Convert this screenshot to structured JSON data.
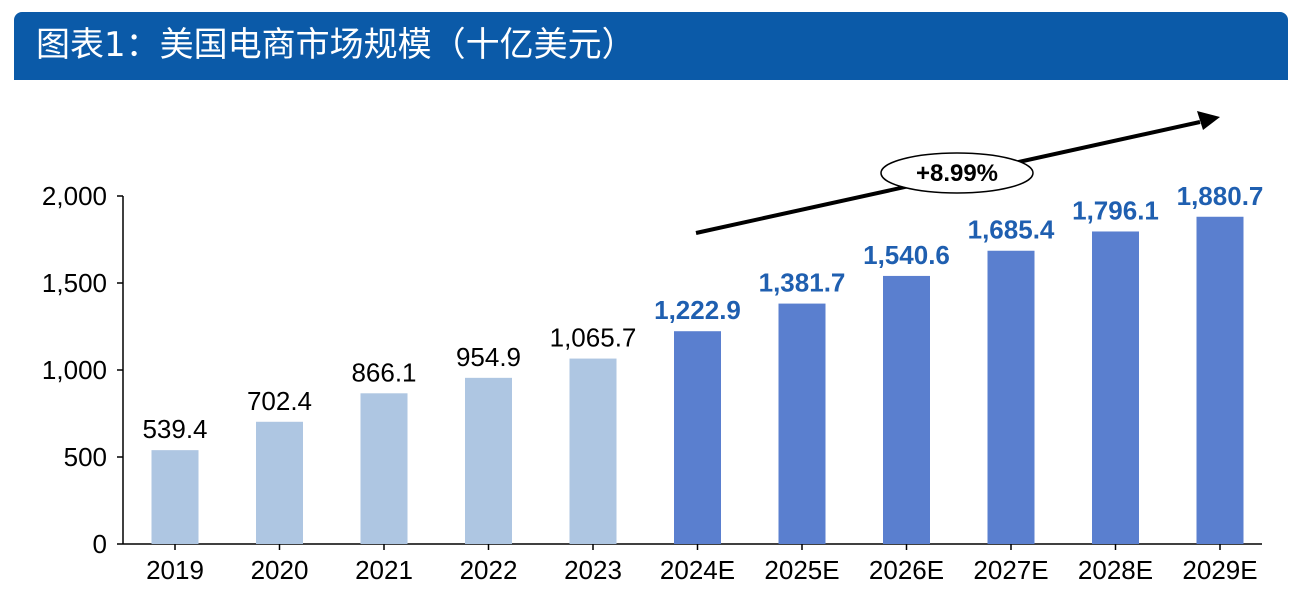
{
  "title": "图表1：美国电商市场规模（十亿美元）",
  "colors": {
    "title_bar": "#0b5aa8",
    "historical_bar": "#aec6e2",
    "forecast_bar": "#5a7fcf",
    "forecast_label": "#1f5fb0",
    "axis": "#000000"
  },
  "growth_annotation": "+8.99%",
  "chart_data": {
    "type": "bar",
    "title": "图表1：美国电商市场规模（十亿美元）",
    "categories": [
      "2019",
      "2020",
      "2021",
      "2022",
      "2023",
      "2024E",
      "2025E",
      "2026E",
      "2027E",
      "2028E",
      "2029E"
    ],
    "values": [
      539.4,
      702.4,
      866.1,
      954.9,
      1065.7,
      1222.9,
      1381.7,
      1540.6,
      1685.4,
      1796.1,
      1880.7
    ],
    "value_labels": [
      "539.4",
      "702.4",
      "866.1",
      "954.9",
      "1,065.7",
      "1,222.9",
      "1,381.7",
      "1,540.6",
      "1,685.4",
      "1,796.1",
      "1,880.7"
    ],
    "forecast": [
      false,
      false,
      false,
      false,
      false,
      true,
      true,
      true,
      true,
      true,
      true
    ],
    "ylim": [
      0,
      2000
    ],
    "yticks": [
      0,
      500,
      1000,
      1500,
      2000
    ],
    "ytick_labels": [
      "0",
      "500",
      "1,000",
      "1,500",
      "2,000"
    ],
    "grid": false,
    "legend": "none",
    "annotation": "+8.99%"
  }
}
